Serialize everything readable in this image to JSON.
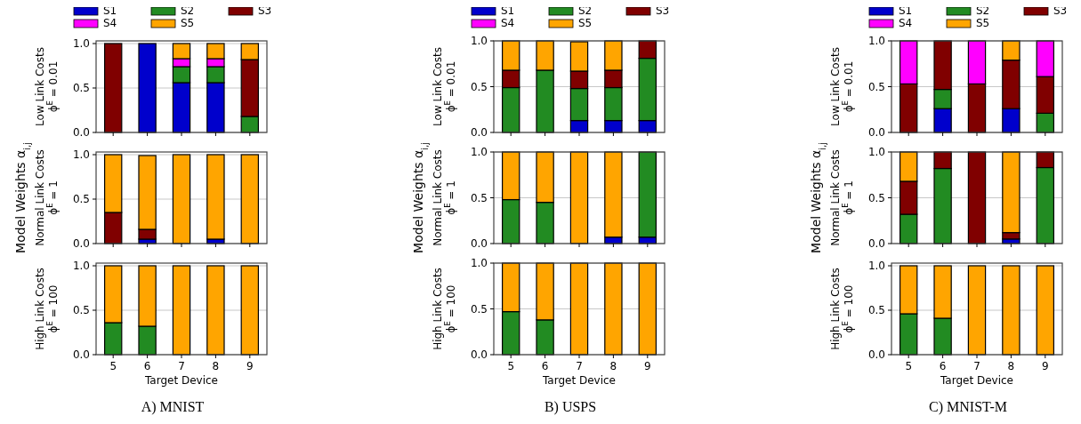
{
  "chart_data": [
    {
      "type": "bar",
      "stacked": true,
      "categories": [
        "5",
        "6",
        "7",
        "8",
        "9"
      ],
      "ylabel": "Low Link Costs\nϕ$^{E}$ = 0.01",
      "ylim": [
        0,
        1.03
      ],
      "yticks": [
        {
          "value": 0,
          "label": "0.0"
        },
        {
          "value": 0.5,
          "label": "0.5"
        },
        {
          "value": 1,
          "label": "1.0"
        }
      ],
      "grid": "y",
      "legend": "top",
      "tick_labels": "y",
      "series": [
        {
          "name": "S1",
          "color": "#0000cc",
          "values": [
            null,
            1.0,
            0.56,
            0.56,
            null
          ]
        },
        {
          "name": "S2",
          "color": "#228b22",
          "values": [
            null,
            null,
            0.18,
            0.18,
            0.18
          ]
        },
        {
          "name": "S3",
          "color": "#800000",
          "values": [
            1.0,
            null,
            null,
            null,
            0.64
          ]
        },
        {
          "name": "S4",
          "color": "#ff00ff",
          "values": [
            null,
            null,
            0.09,
            0.09,
            null
          ]
        },
        {
          "name": "S5",
          "color": "#ffa500",
          "values": [
            null,
            null,
            0.17,
            0.17,
            0.18
          ]
        }
      ]
    },
    {
      "type": "bar",
      "stacked": true,
      "categories": [
        "5",
        "6",
        "7",
        "8",
        "9"
      ],
      "ylabel": "Normal Link Costs\nϕ$^{E}$ = 1",
      "annotations": [
        "Model Weights α$_{i,j}$"
      ],
      "ylim": [
        0,
        1.03
      ],
      "yticks": [
        {
          "value": 0,
          "label": "0.0"
        },
        {
          "value": 0.5,
          "label": "0.5"
        },
        {
          "value": 1,
          "label": "1.0"
        }
      ],
      "grid": "y",
      "tick_labels": "y",
      "series": [
        {
          "color": "#0000cc",
          "values": [
            null,
            0.05,
            null,
            0.05,
            null
          ]
        },
        {
          "color": "#800000",
          "values": [
            0.35,
            0.11,
            null,
            null,
            null
          ]
        },
        {
          "color": "#ffa500",
          "values": [
            0.65,
            0.83,
            1.0,
            0.95,
            1.0
          ]
        }
      ]
    },
    {
      "type": "bar",
      "stacked": true,
      "categories": [
        "5",
        "6",
        "7",
        "8",
        "9"
      ],
      "xlabel": "Target Device",
      "ylabel": "High Link Costs\nϕ$^{E}$ = 100",
      "annotations": [
        "A) MNIST"
      ],
      "ylim": [
        0,
        1.03
      ],
      "yticks": [
        {
          "value": 0,
          "label": "0.0"
        },
        {
          "value": 0.5,
          "label": "0.5"
        },
        {
          "value": 1,
          "label": "1.0"
        }
      ],
      "grid": "y",
      "series": [
        {
          "color": "#228b22",
          "values": [
            0.36,
            0.32,
            null,
            null,
            null
          ]
        },
        {
          "color": "#ffa500",
          "values": [
            0.64,
            0.68,
            1.0,
            1.0,
            1.0
          ]
        }
      ]
    },
    {
      "type": "bar",
      "stacked": true,
      "categories": [
        "5",
        "6",
        "7",
        "8",
        "9"
      ],
      "ylabel": "Low Link Costs\nϕ$^{E}$ = 0.01",
      "ylim": [
        0,
        1.0
      ],
      "yticks": [
        {
          "value": 0,
          "label": "0.0"
        },
        {
          "value": 0.5,
          "label": "0.5"
        },
        {
          "value": 1,
          "label": "1.0"
        }
      ],
      "grid": "y",
      "legend": "top",
      "tick_labels": "y",
      "series": [
        {
          "name": "S1",
          "color": "#0000cc",
          "values": [
            null,
            null,
            0.13,
            0.13,
            0.13
          ]
        },
        {
          "name": "S2",
          "color": "#228b22",
          "values": [
            0.49,
            0.68,
            0.35,
            0.36,
            0.68
          ]
        },
        {
          "name": "S3",
          "color": "#800000",
          "values": [
            0.19,
            null,
            0.19,
            0.19,
            0.19
          ]
        },
        {
          "name": "S4",
          "color": "#ff00ff",
          "values": [
            null,
            null,
            null,
            null,
            null
          ]
        },
        {
          "name": "S5",
          "color": "#ffa500",
          "values": [
            0.32,
            0.32,
            0.32,
            0.32,
            null
          ]
        }
      ]
    },
    {
      "type": "bar",
      "stacked": true,
      "categories": [
        "5",
        "6",
        "7",
        "8",
        "9"
      ],
      "ylabel": "Normal Link Costs\nϕ$^{E}$ = 1",
      "annotations": [
        "Model Weights α$_{i,j}$"
      ],
      "ylim": [
        0,
        1.0
      ],
      "yticks": [
        {
          "value": 0,
          "label": "0.0"
        },
        {
          "value": 0.5,
          "label": "0.5"
        },
        {
          "value": 1,
          "label": "1.0"
        }
      ],
      "grid": "y",
      "tick_labels": "y",
      "series": [
        {
          "color": "#0000cc",
          "values": [
            null,
            null,
            null,
            0.07,
            0.07
          ]
        },
        {
          "color": "#228b22",
          "values": [
            0.48,
            0.45,
            null,
            null,
            0.93
          ]
        },
        {
          "color": "#ffa500",
          "values": [
            0.52,
            0.55,
            1.0,
            0.93,
            null
          ]
        }
      ]
    },
    {
      "type": "bar",
      "stacked": true,
      "categories": [
        "5",
        "6",
        "7",
        "8",
        "9"
      ],
      "xlabel": "Target Device",
      "ylabel": "High Link Costs\nϕ$^{E}$ = 100",
      "annotations": [
        "B) USPS"
      ],
      "ylim": [
        0,
        1.0
      ],
      "yticks": [
        {
          "value": 0,
          "label": "0.0"
        },
        {
          "value": 0.5,
          "label": "0.5"
        },
        {
          "value": 1,
          "label": "1.0"
        }
      ],
      "grid": "y",
      "series": [
        {
          "color": "#228b22",
          "values": [
            0.47,
            0.38,
            null,
            null,
            null
          ]
        },
        {
          "color": "#ffa500",
          "values": [
            0.53,
            0.62,
            1.0,
            1.0,
            1.0
          ]
        }
      ]
    },
    {
      "type": "bar",
      "stacked": true,
      "categories": [
        "5",
        "6",
        "7",
        "8",
        "9"
      ],
      "ylabel": "Low Link Costs\nϕ$^{E}$ = 0.01",
      "ylim": [
        0,
        1.0
      ],
      "yticks": [
        {
          "value": 0,
          "label": "0.0"
        },
        {
          "value": 0.5,
          "label": "0.5"
        },
        {
          "value": 1,
          "label": "1.0"
        }
      ],
      "grid": "y",
      "legend": "top",
      "tick_labels": "y",
      "series": [
        {
          "name": "S1",
          "color": "#0000cc",
          "values": [
            null,
            0.26,
            null,
            0.26,
            null
          ]
        },
        {
          "name": "S2",
          "color": "#228b22",
          "values": [
            null,
            0.21,
            null,
            null,
            0.21
          ]
        },
        {
          "name": "S3",
          "color": "#800000",
          "values": [
            0.53,
            0.53,
            0.53,
            0.53,
            0.4
          ]
        },
        {
          "name": "S4",
          "color": "#ff00ff",
          "values": [
            0.47,
            null,
            0.47,
            null,
            0.39
          ]
        },
        {
          "name": "S5",
          "color": "#ffa500",
          "values": [
            null,
            null,
            null,
            0.21,
            null
          ]
        }
      ]
    },
    {
      "type": "bar",
      "stacked": true,
      "categories": [
        "5",
        "6",
        "7",
        "8",
        "9"
      ],
      "ylabel": "Normal Link Costs\nϕ$^{E}$ = 1",
      "annotations": [
        "Model Weights α$_{i,j}$"
      ],
      "ylim": [
        0,
        1.0
      ],
      "yticks": [
        {
          "value": 0,
          "label": "0.0"
        },
        {
          "value": 0.5,
          "label": "0.5"
        },
        {
          "value": 1,
          "label": "1.0"
        }
      ],
      "grid": "y",
      "tick_labels": "y",
      "series": [
        {
          "color": "#0000cc",
          "values": [
            null,
            null,
            null,
            0.05,
            null
          ]
        },
        {
          "color": "#228b22",
          "values": [
            0.32,
            0.82,
            null,
            null,
            0.83
          ]
        },
        {
          "color": "#800000",
          "values": [
            0.36,
            0.18,
            1.0,
            0.07,
            0.17
          ]
        },
        {
          "color": "#ffa500",
          "values": [
            0.32,
            null,
            null,
            0.88,
            null
          ]
        }
      ]
    },
    {
      "type": "bar",
      "stacked": true,
      "categories": [
        "5",
        "6",
        "7",
        "8",
        "9"
      ],
      "xlabel": "Target Device",
      "ylabel": "High Link Costs\nϕ$^{E}$ = 100",
      "annotations": [
        "C) MNIST-M"
      ],
      "ylim": [
        0,
        1.03
      ],
      "yticks": [
        {
          "value": 0,
          "label": "0.0"
        },
        {
          "value": 0.5,
          "label": "0.5"
        },
        {
          "value": 1,
          "label": "1.0"
        }
      ],
      "grid": "y",
      "series": [
        {
          "color": "#228b22",
          "values": [
            0.46,
            0.41,
            null,
            null,
            null
          ]
        },
        {
          "color": "#ffa500",
          "values": [
            0.54,
            0.59,
            1.0,
            1.0,
            1.0
          ]
        }
      ]
    }
  ]
}
